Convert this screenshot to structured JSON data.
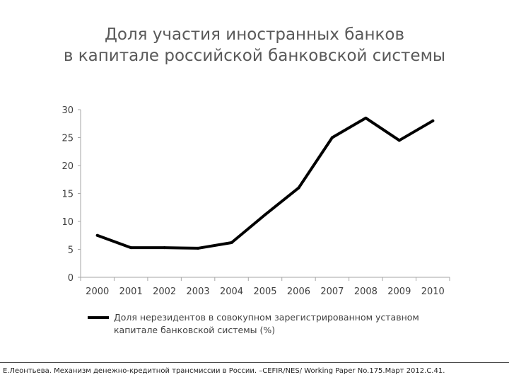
{
  "slide": {
    "title_line1": "Доля участия иностранных банков",
    "title_line2": "в капитале российской банковской системы",
    "footer": "Е.Леонтьева. Механизм денежно-кредитной трансмиссии в России. –CEFIR/NES/ Working Paper No.175.Март 2012.С.41."
  },
  "chart_data": {
    "type": "line",
    "title": "",
    "xlabel": "",
    "ylabel": "",
    "x": [
      "2000",
      "2001",
      "2002",
      "2003",
      "2004",
      "2005",
      "2006",
      "2007",
      "2008",
      "2009",
      "2010"
    ],
    "series": [
      {
        "name": "Доля нерезидентов в совокупном зарегистрированном уставном капитале банковской системы (%)",
        "legend_line1": "Доля нерезидентов в совокупном зарегистрированном уставном",
        "legend_line2": "капитале банковской системы (%)",
        "values": [
          7.5,
          5.3,
          5.3,
          5.2,
          6.2,
          11.2,
          16.0,
          25.0,
          28.5,
          24.5,
          28.0
        ],
        "color": "#000000"
      }
    ],
    "yticks": [
      "0",
      "5",
      "10",
      "15",
      "20",
      "25",
      "30"
    ],
    "ylim": [
      0,
      30
    ],
    "grid": false,
    "legend_position": "bottom"
  }
}
